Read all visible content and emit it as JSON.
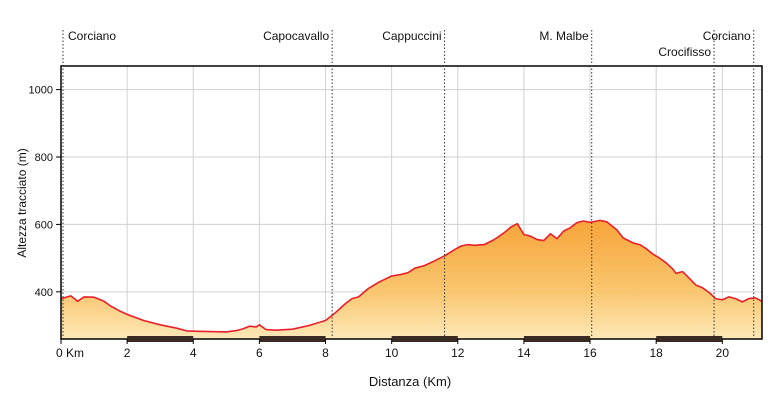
{
  "chart_data": {
    "type": "area",
    "title": "",
    "xlabel": "Distanza (Km)",
    "ylabel": "Altezza tracciato (m)",
    "xlim": [
      0,
      21.2
    ],
    "ylim": [
      260,
      1070
    ],
    "x_ticks": [
      {
        "value": 0,
        "label": "0 Km"
      },
      {
        "value": 2,
        "label": "2"
      },
      {
        "value": 4,
        "label": "4"
      },
      {
        "value": 6,
        "label": "6"
      },
      {
        "value": 8,
        "label": "8"
      },
      {
        "value": 10,
        "label": "10"
      },
      {
        "value": 12,
        "label": "12"
      },
      {
        "value": 14,
        "label": "14"
      },
      {
        "value": 16,
        "label": "16"
      },
      {
        "value": 18,
        "label": "18"
      },
      {
        "value": 20,
        "label": "20"
      }
    ],
    "y_ticks": [
      {
        "value": 400,
        "label": "400"
      },
      {
        "value": 600,
        "label": "600"
      },
      {
        "value": 800,
        "label": "800"
      },
      {
        "value": 1000,
        "label": "1000"
      }
    ],
    "grid": true,
    "landmarks": [
      {
        "name": "Corciano",
        "x": 0
      },
      {
        "name": "Capocavallo",
        "x": 8.2
      },
      {
        "name": "Cappuccini",
        "x": 11.6
      },
      {
        "name": "M. Malbe",
        "x": 16.05
      },
      {
        "name": "Crocifisso",
        "x": 19.75
      },
      {
        "name": "Corciano",
        "x": 20.95
      }
    ],
    "series": [
      {
        "x": [
          0,
          0.3,
          0.5,
          0.7,
          1,
          1.3,
          1.5,
          1.8,
          2,
          2.5,
          3,
          3.5,
          3.8,
          4,
          4.5,
          5,
          5.3,
          5.5,
          5.7,
          5.9,
          6,
          6.2,
          6.5,
          7,
          7.5,
          8,
          8.3,
          8.6,
          8.8,
          9,
          9.3,
          9.6,
          10,
          10.3,
          10.5,
          10.7,
          11,
          11.3,
          11.6,
          11.9,
          12.1,
          12.3,
          12.5,
          12.8,
          13.1,
          13.4,
          13.6,
          13.8,
          14,
          14.2,
          14.4,
          14.6,
          14.8,
          15,
          15.2,
          15.4,
          15.6,
          15.8,
          16,
          16.3,
          16.5,
          16.8,
          17,
          17.3,
          17.5,
          17.7,
          17.9,
          18.1,
          18.3,
          18.5,
          18.6,
          18.8,
          19,
          19.2,
          19.4,
          19.6,
          19.8,
          20,
          20.2,
          20.4,
          20.6,
          20.8,
          21,
          21.2
        ],
        "y": [
          380,
          388,
          372,
          385,
          384,
          372,
          358,
          342,
          333,
          315,
          302,
          292,
          284,
          283,
          282,
          281,
          285,
          290,
          298,
          296,
          302,
          288,
          286,
          289,
          300,
          315,
          338,
          365,
          380,
          385,
          410,
          428,
          447,
          452,
          457,
          470,
          478,
          492,
          507,
          525,
          536,
          540,
          538,
          540,
          555,
          575,
          592,
          602,
          570,
          565,
          555,
          552,
          572,
          558,
          580,
          590,
          605,
          610,
          606,
          612,
          608,
          585,
          560,
          545,
          540,
          528,
          512,
          500,
          486,
          468,
          455,
          460,
          440,
          420,
          412,
          398,
          380,
          376,
          385,
          380,
          370,
          380,
          382,
          372
        ]
      }
    ]
  }
}
